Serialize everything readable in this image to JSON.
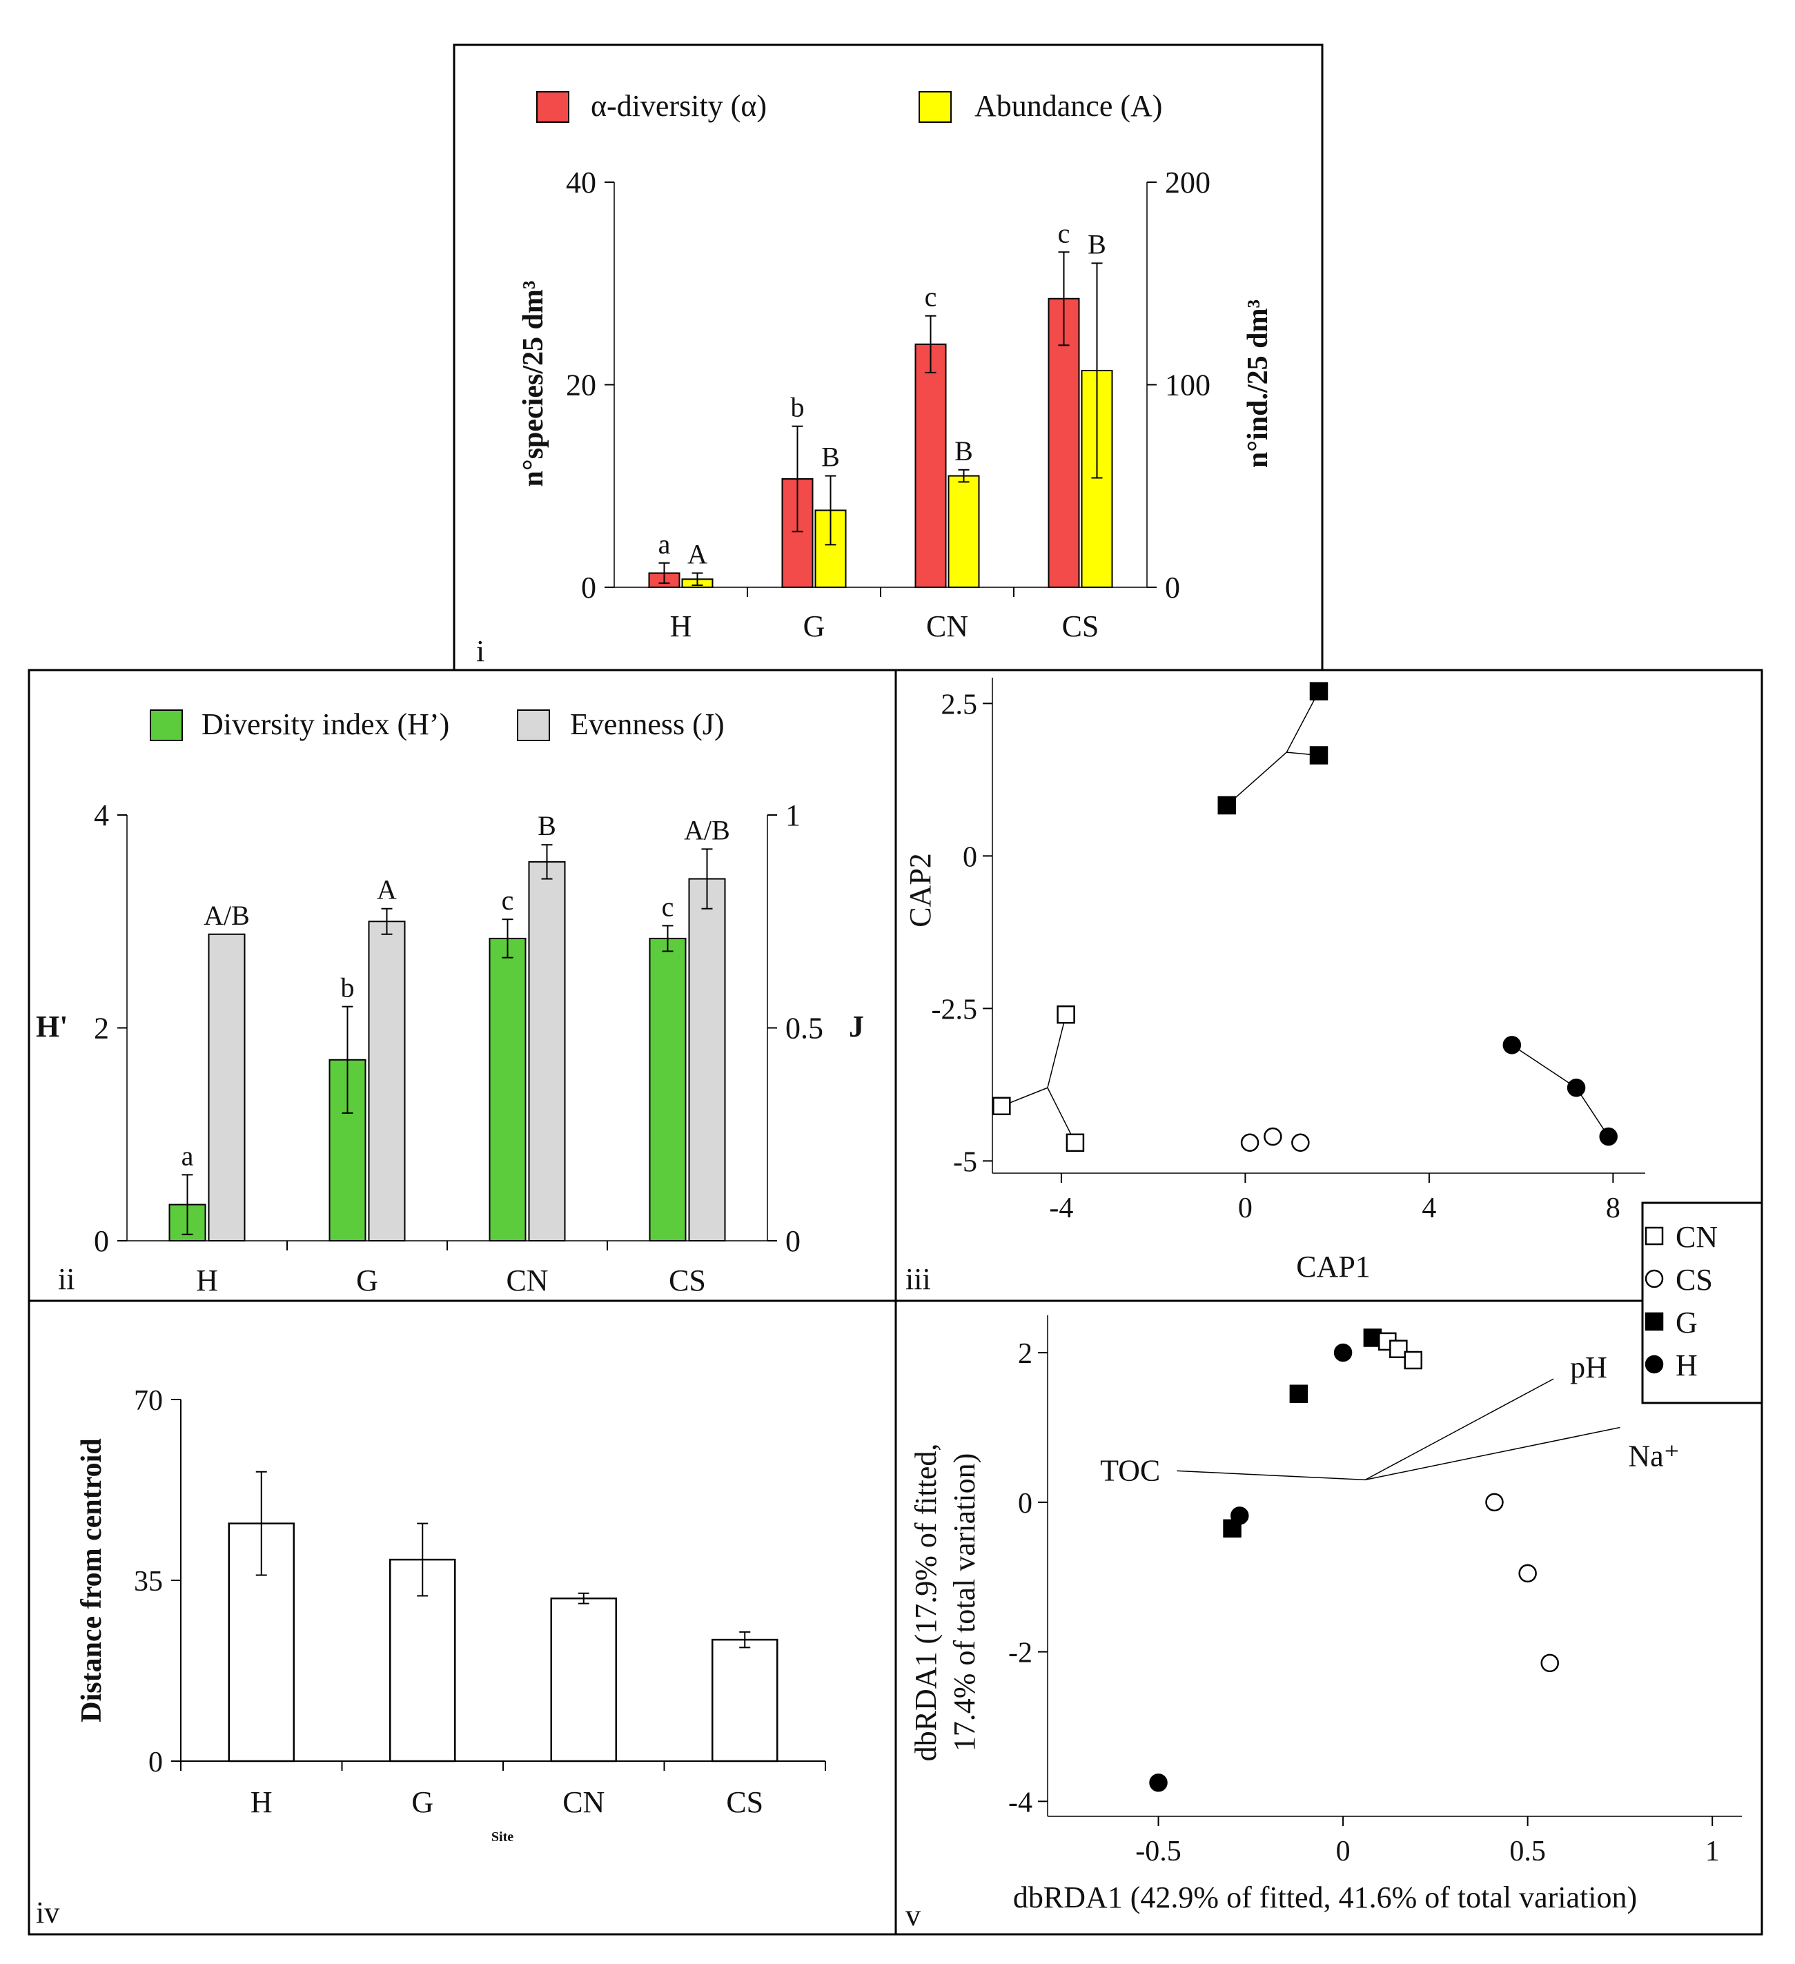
{
  "panels": {
    "i": {
      "label": "i",
      "chart_data": {
        "type": "bar",
        "categories": [
          "H",
          "G",
          "CN",
          "CS"
        ],
        "series": [
          {
            "name": "α-diversity (α)",
            "axis": "left",
            "color": "#f34a4a",
            "values": [
              1.4,
              10.7,
              24.0,
              28.5
            ],
            "errors": [
              1.0,
              5.2,
              2.8,
              4.6
            ],
            "letters": [
              "a",
              "b",
              "c",
              "c"
            ]
          },
          {
            "name": "Abundance (A)",
            "axis": "right",
            "color": "#ffff00",
            "values": [
              4,
              38,
              55,
              107
            ],
            "errors": [
              3,
              17,
              3,
              53
            ],
            "letters": [
              "A",
              "B",
              "B",
              "B"
            ]
          }
        ],
        "ylabel": "n°species/25 dm³",
        "y2label": "n°ind./25 dm³",
        "ylim": [
          0,
          40
        ],
        "y2lim": [
          0,
          200
        ],
        "yticks": [
          "0",
          "20",
          "40"
        ],
        "y2ticks": [
          "0",
          "100",
          "200"
        ]
      }
    },
    "ii": {
      "label": "ii",
      "chart_data": {
        "type": "bar",
        "categories": [
          "H",
          "G",
          "CN",
          "CS"
        ],
        "series": [
          {
            "name": "Diversity index (H’)",
            "axis": "left",
            "color": "#5ccc3c",
            "values": [
              0.34,
              1.7,
              2.84,
              2.84
            ],
            "errors": [
              0.28,
              0.5,
              0.18,
              0.12
            ],
            "letters": [
              "a",
              "b",
              "c",
              "c"
            ]
          },
          {
            "name": "Evenness (J)",
            "axis": "right",
            "color": "#d8d8d8",
            "values": [
              0.72,
              0.75,
              0.89,
              0.85
            ],
            "errors": [
              0,
              0.03,
              0.04,
              0.07
            ],
            "letters": [
              "A/B",
              "A",
              "B",
              "A/B"
            ]
          }
        ],
        "ylabel": "H'",
        "y2label": "J",
        "ylim": [
          0,
          4
        ],
        "y2lim": [
          0,
          1
        ],
        "yticks": [
          "0",
          "2",
          "4"
        ],
        "y2ticks": [
          "0",
          "0.5",
          "1"
        ]
      }
    },
    "iii": {
      "label": "iii",
      "chart_data": {
        "type": "scatter",
        "xlabel": "CAP1",
        "ylabel": "CAP2",
        "xlim": [
          -5.5,
          8.7
        ],
        "ylim": [
          -5.2,
          2.9
        ],
        "xticks": [
          "-4",
          "0",
          "4",
          "8"
        ],
        "yticks": [
          "-5",
          "-2.5",
          "0",
          "2.5"
        ],
        "groups": [
          {
            "name": "G",
            "marker": "filled-square",
            "centroid": [
              0.9,
              1.7
            ],
            "points": [
              [
                1.6,
                2.7
              ],
              [
                1.6,
                1.65
              ],
              [
                -0.4,
                0.83
              ]
            ]
          },
          {
            "name": "CN",
            "marker": "open-square",
            "centroid": [
              -4.3,
              -3.8
            ],
            "points": [
              [
                -3.9,
                -2.6
              ],
              [
                -5.3,
                -4.1
              ],
              [
                -3.7,
                -4.7
              ]
            ]
          },
          {
            "name": "CS",
            "marker": "open-circle",
            "centroid": null,
            "points": [
              [
                0.1,
                -4.7
              ],
              [
                0.6,
                -4.6
              ],
              [
                1.2,
                -4.7
              ]
            ]
          },
          {
            "name": "H",
            "marker": "filled-circle",
            "centroid": null,
            "points": [
              [
                5.8,
                -3.1
              ],
              [
                7.2,
                -3.8
              ],
              [
                7.9,
                -4.6
              ]
            ]
          }
        ],
        "legend": [
          "CN",
          "CS",
          "G",
          "H"
        ]
      }
    },
    "iv": {
      "label": "iv",
      "chart_data": {
        "type": "bar",
        "categories": [
          "H",
          "G",
          "CN",
          "CS"
        ],
        "values": [
          46,
          39,
          31.5,
          23.5
        ],
        "errors": [
          10,
          7,
          1,
          1.5
        ],
        "xlabel": "Site",
        "ylabel": "Distance from centroid",
        "ylim": [
          0,
          70
        ],
        "yticks": [
          "0",
          "35",
          "70"
        ]
      }
    },
    "v": {
      "label": "v",
      "chart_data": {
        "type": "scatter",
        "xlabel": "dbRDA1 (42.9% of fitted, 41.6% of total variation)",
        "ylabel_line1": "dbRDA1 (17.9% of fitted,",
        "ylabel_line2": "17.4% of total variation)",
        "xlim": [
          -0.8,
          1.08
        ],
        "ylim": [
          -4.2,
          2.5
        ],
        "xticks": [
          "-0.5",
          "0",
          "0.5",
          "1"
        ],
        "yticks": [
          "-4",
          "-2",
          "0",
          "2"
        ],
        "groups": [
          {
            "name": "G",
            "marker": "filled-square",
            "points": [
              [
                0.08,
                2.2
              ],
              [
                -0.12,
                1.45
              ],
              [
                -0.3,
                -0.35
              ]
            ]
          },
          {
            "name": "H",
            "marker": "filled-circle",
            "points": [
              [
                0.0,
                2.0
              ],
              [
                -0.28,
                -0.18
              ],
              [
                -0.5,
                -3.75
              ]
            ]
          },
          {
            "name": "CN",
            "marker": "open-square",
            "points": [
              [
                0.12,
                2.15
              ],
              [
                0.15,
                2.05
              ],
              [
                0.19,
                1.9
              ]
            ]
          },
          {
            "name": "CS",
            "marker": "open-circle",
            "points": [
              [
                0.41,
                0.0
              ],
              [
                0.5,
                -0.95
              ],
              [
                0.56,
                -2.15
              ]
            ]
          }
        ],
        "vectors": [
          {
            "label": "pH",
            "end": [
              0.57,
              1.65
            ]
          },
          {
            "label": "Na⁺",
            "end": [
              0.75,
              1.0
            ]
          },
          {
            "label": "TOC",
            "end": [
              -0.45,
              0.42
            ]
          }
        ],
        "vector_origin": [
          0.06,
          0.3
        ]
      }
    }
  }
}
